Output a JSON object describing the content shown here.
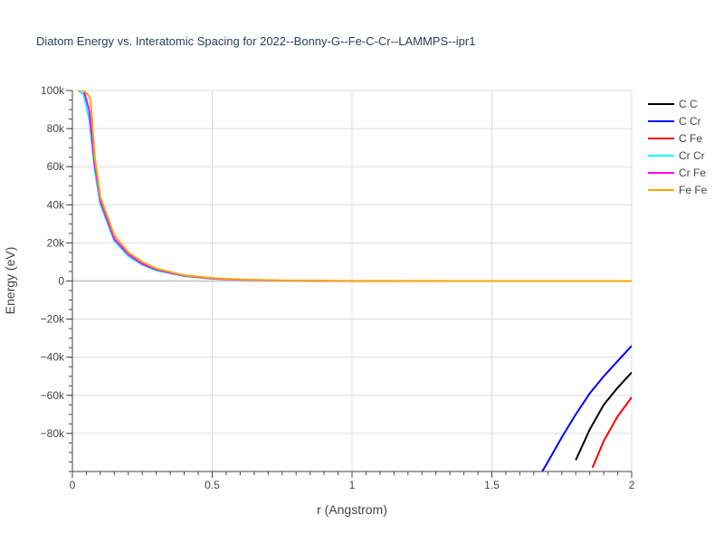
{
  "chart_data": {
    "type": "line",
    "title": "Diatom Energy vs. Interatomic Spacing for 2022--Bonny-G--Fe-C-Cr--LAMMPS--ipr1",
    "xlabel": "r (Angstrom)",
    "ylabel": "Energy (eV)",
    "xlim": [
      0,
      2
    ],
    "ylim": [
      -100000,
      100000
    ],
    "x_ticks": [
      0,
      0.5,
      1,
      1.5,
      2
    ],
    "x_tick_labels": [
      "0",
      "0.5",
      "1",
      "1.5",
      "2"
    ],
    "y_ticks": [
      100000,
      80000,
      60000,
      40000,
      20000,
      0,
      -20000,
      -40000,
      -60000,
      -80000
    ],
    "y_tick_labels": [
      "100k",
      "80k",
      "60k",
      "40k",
      "20k",
      "0",
      "−20k",
      "−40k",
      "−60k",
      "−80k"
    ],
    "grid": true,
    "legend_position": "top-right",
    "series": [
      {
        "name": "C C",
        "color": "#000000",
        "x": [
          1.8,
          1.85,
          1.9,
          1.95,
          2.0
        ],
        "y": [
          -94000,
          -78000,
          -65000,
          -56000,
          -48000
        ]
      },
      {
        "name": "C Cr",
        "color": "#0000ff",
        "x": [
          1.68,
          1.7,
          1.75,
          1.8,
          1.85,
          1.9,
          1.95,
          2.0
        ],
        "y": [
          -100000,
          -95000,
          -82000,
          -70000,
          -59000,
          -50000,
          -42000,
          -34000
        ]
      },
      {
        "name": "C Fe",
        "color": "#ff0000",
        "x": [
          1.86,
          1.9,
          1.95,
          2.0
        ],
        "y": [
          -98000,
          -84000,
          -71000,
          -61000
        ]
      },
      {
        "name": "Cr Cr",
        "color": "#00ffff",
        "x": [
          0.02,
          0.04,
          0.06,
          0.08,
          0.1,
          0.15,
          0.2,
          0.25,
          0.3,
          0.4,
          0.5,
          0.6,
          0.75,
          1.0,
          1.5,
          2.0
        ],
        "y": [
          100000,
          98000,
          85000,
          58000,
          40000,
          21000,
          13000,
          8500,
          5500,
          2500,
          1200,
          600,
          200,
          0,
          0,
          0
        ]
      },
      {
        "name": "Cr Fe",
        "color": "#ff00ff",
        "x": [
          0.02,
          0.04,
          0.06,
          0.08,
          0.1,
          0.15,
          0.2,
          0.25,
          0.3,
          0.4,
          0.5,
          0.6,
          0.75,
          1.0,
          1.5,
          2.0
        ],
        "y": [
          100000,
          100000,
          90000,
          61000,
          42000,
          22000,
          14000,
          9000,
          6000,
          2700,
          1300,
          650,
          220,
          0,
          0,
          0
        ]
      },
      {
        "name": "Fe Fe",
        "color": "#ffa500",
        "x": [
          0.02,
          0.04,
          0.06,
          0.065,
          0.08,
          0.1,
          0.15,
          0.2,
          0.25,
          0.3,
          0.4,
          0.5,
          0.6,
          0.75,
          1.0,
          1.5,
          2.0
        ],
        "y": [
          100000,
          100000,
          97000,
          95000,
          65000,
          44000,
          24000,
          15000,
          10000,
          6500,
          3000,
          1500,
          800,
          300,
          50,
          0,
          0
        ]
      }
    ]
  }
}
